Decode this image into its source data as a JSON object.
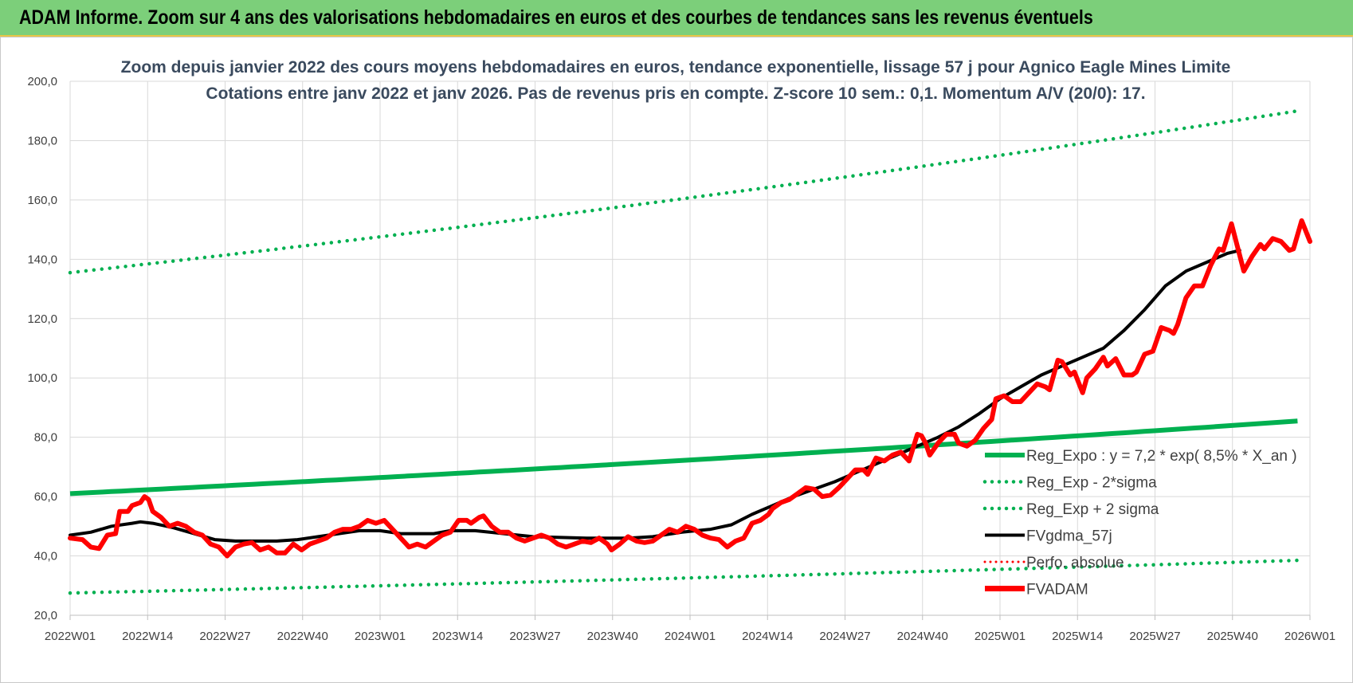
{
  "header": {
    "title": "ADAM Informe. Zoom sur 4 ans des valorisations hebdomadaires en euros et des courbes de tendances sans les revenus éventuels"
  },
  "chart_data": {
    "type": "line",
    "title_line1": "Zoom depuis janvier 2022 des cours moyens hebdomadaires en euros, tendance exponentielle, lissage 57 j pour Agnico Eagle Mines Limite",
    "title_line2": "Cotations entre janv 2022 et janv 2026. Pas de revenus pris en compte. Z-score 10 sem.: 0,1. Momentum A/V (20/0): 17.",
    "ylim": [
      20,
      200
    ],
    "yticks": [
      "20,0",
      "40,0",
      "60,0",
      "80,0",
      "100,0",
      "120,0",
      "140,0",
      "160,0",
      "180,0",
      "200,0"
    ],
    "xticks": [
      "2022W01",
      "2022W14",
      "2022W27",
      "2022W40",
      "2023W01",
      "2023W14",
      "2023W27",
      "2023W40",
      "2024W01",
      "2024W14",
      "2024W27",
      "2024W40",
      "2025W01",
      "2025W14",
      "2025W27",
      "2025W40",
      "2026W01"
    ],
    "grid": true,
    "legend_position": "right",
    "colors": {
      "reg": "#00b050",
      "fvgdma": "#000000",
      "perfo": "#ff0000",
      "fvadam": "#ff0000"
    },
    "series": [
      {
        "name": "Reg_Expo : y = 7,2 * exp( 8,5% *  X_an )",
        "style": "solid-thick",
        "values_start": 61,
        "values_end": 85.5
      },
      {
        "name": "Reg_Exp - 2*sigma",
        "style": "dotted",
        "values_start": 27.5,
        "values_end": 38.5
      },
      {
        "name": "Reg_Exp + 2 sigma",
        "style": "dotted",
        "values_start": 135.5,
        "values_end": 190
      },
      {
        "name": "FVgdma_57j",
        "style": "solid",
        "points": [
          [
            0,
            47
          ],
          [
            5,
            48
          ],
          [
            10,
            50
          ],
          [
            15,
            51
          ],
          [
            17,
            51.5
          ],
          [
            20,
            51
          ],
          [
            25,
            49.5
          ],
          [
            30,
            47.5
          ],
          [
            35,
            45.5
          ],
          [
            40,
            45
          ],
          [
            50,
            45
          ],
          [
            55,
            45.5
          ],
          [
            60,
            46.5
          ],
          [
            65,
            47.5
          ],
          [
            70,
            48.5
          ],
          [
            75,
            48.5
          ],
          [
            80,
            47.5
          ],
          [
            88,
            47.5
          ],
          [
            92,
            48.5
          ],
          [
            98,
            48.5
          ],
          [
            105,
            47.5
          ],
          [
            112,
            46.5
          ],
          [
            125,
            46
          ],
          [
            135,
            46
          ],
          [
            141,
            46.5
          ],
          [
            148,
            48
          ],
          [
            155,
            49
          ],
          [
            160,
            50.5
          ],
          [
            165,
            54
          ],
          [
            170,
            57
          ],
          [
            175,
            60
          ],
          [
            180,
            62.5
          ],
          [
            185,
            65
          ],
          [
            190,
            68
          ],
          [
            195,
            71
          ],
          [
            200,
            74
          ],
          [
            205,
            77
          ],
          [
            210,
            80
          ],
          [
            215,
            83.5
          ],
          [
            220,
            88
          ],
          [
            225,
            93
          ],
          [
            230,
            97
          ],
          [
            235,
            101
          ],
          [
            240,
            104
          ],
          [
            245,
            107
          ],
          [
            250,
            110
          ],
          [
            255,
            116
          ],
          [
            260,
            123
          ],
          [
            265,
            131
          ],
          [
            270,
            136
          ],
          [
            275,
            139
          ],
          [
            280,
            142
          ],
          [
            283,
            143
          ]
        ]
      },
      {
        "name": "Perfo. absolue",
        "style": "dotted",
        "points": []
      },
      {
        "name": "FVADAM",
        "style": "solid-thick",
        "points": [
          [
            0,
            46
          ],
          [
            3,
            45.5
          ],
          [
            5,
            43
          ],
          [
            7,
            42.5
          ],
          [
            9,
            47
          ],
          [
            11,
            47.5
          ],
          [
            12,
            55
          ],
          [
            14,
            55
          ],
          [
            15,
            57
          ],
          [
            17,
            58
          ],
          [
            18,
            60
          ],
          [
            19,
            59
          ],
          [
            20,
            55
          ],
          [
            22,
            53
          ],
          [
            24,
            50
          ],
          [
            26,
            51
          ],
          [
            28,
            50
          ],
          [
            30,
            48
          ],
          [
            32,
            47
          ],
          [
            34,
            44
          ],
          [
            36,
            43
          ],
          [
            38,
            40
          ],
          [
            40,
            43
          ],
          [
            42,
            44
          ],
          [
            44,
            44.5
          ],
          [
            46,
            42
          ],
          [
            48,
            43
          ],
          [
            50,
            41
          ],
          [
            52,
            41
          ],
          [
            54,
            44
          ],
          [
            56,
            42
          ],
          [
            58,
            44
          ],
          [
            60,
            45
          ],
          [
            62,
            46
          ],
          [
            64,
            48
          ],
          [
            66,
            49
          ],
          [
            68,
            49
          ],
          [
            70,
            50
          ],
          [
            72,
            52
          ],
          [
            74,
            51
          ],
          [
            76,
            52
          ],
          [
            78,
            49
          ],
          [
            80,
            46
          ],
          [
            82,
            43
          ],
          [
            84,
            44
          ],
          [
            86,
            43
          ],
          [
            88,
            45
          ],
          [
            90,
            47
          ],
          [
            92,
            48
          ],
          [
            94,
            52
          ],
          [
            96,
            52
          ],
          [
            97,
            51
          ],
          [
            99,
            53
          ],
          [
            100,
            53.5
          ],
          [
            102,
            50
          ],
          [
            104,
            48
          ],
          [
            106,
            48
          ],
          [
            108,
            46
          ],
          [
            110,
            45
          ],
          [
            112,
            46
          ],
          [
            114,
            47
          ],
          [
            116,
            46
          ],
          [
            118,
            44
          ],
          [
            120,
            43
          ],
          [
            122,
            44
          ],
          [
            124,
            45
          ],
          [
            126,
            44.5
          ],
          [
            128,
            46
          ],
          [
            130,
            44
          ],
          [
            131,
            42
          ],
          [
            133,
            44
          ],
          [
            135,
            46.5
          ],
          [
            137,
            45
          ],
          [
            139,
            44.5
          ],
          [
            141,
            45
          ],
          [
            143,
            47
          ],
          [
            145,
            49
          ],
          [
            147,
            48
          ],
          [
            149,
            50
          ],
          [
            151,
            49
          ],
          [
            153,
            47
          ],
          [
            155,
            46
          ],
          [
            157,
            45.5
          ],
          [
            159,
            43
          ],
          [
            161,
            45
          ],
          [
            163,
            46
          ],
          [
            165,
            51
          ],
          [
            167,
            52
          ],
          [
            169,
            54
          ],
          [
            170,
            56
          ],
          [
            172,
            58
          ],
          [
            174,
            59
          ],
          [
            176,
            61
          ],
          [
            178,
            63
          ],
          [
            180,
            62.5
          ],
          [
            182,
            60
          ],
          [
            184,
            60.5
          ],
          [
            186,
            63
          ],
          [
            188,
            66
          ],
          [
            190,
            69
          ],
          [
            192,
            69
          ],
          [
            193,
            67.5
          ],
          [
            195,
            73
          ],
          [
            197,
            72
          ],
          [
            199,
            74
          ],
          [
            201,
            75
          ],
          [
            203,
            72
          ],
          [
            205,
            81
          ],
          [
            206,
            80.5
          ],
          [
            207,
            78
          ],
          [
            208,
            74
          ],
          [
            210,
            78
          ],
          [
            212,
            81
          ],
          [
            214,
            81
          ],
          [
            215,
            78
          ],
          [
            217,
            77
          ],
          [
            219,
            79
          ],
          [
            221,
            83
          ],
          [
            223,
            86
          ],
          [
            224,
            93
          ],
          [
            226,
            94
          ],
          [
            228,
            92
          ],
          [
            230,
            92
          ],
          [
            232,
            95
          ],
          [
            234,
            98
          ],
          [
            236,
            97
          ],
          [
            237,
            96
          ],
          [
            239,
            106
          ],
          [
            240,
            105.5
          ],
          [
            242,
            101
          ],
          [
            243,
            102
          ],
          [
            245,
            95
          ],
          [
            246,
            100
          ],
          [
            248,
            103
          ],
          [
            250,
            107
          ],
          [
            251,
            104
          ],
          [
            253,
            106.5
          ],
          [
            255,
            101
          ],
          [
            257,
            101
          ],
          [
            258,
            102
          ],
          [
            260,
            108
          ],
          [
            262,
            109
          ],
          [
            264,
            117
          ],
          [
            266,
            116
          ],
          [
            267,
            115
          ],
          [
            268,
            118
          ],
          [
            270,
            127
          ],
          [
            272,
            131
          ],
          [
            274,
            131
          ],
          [
            276,
            138
          ],
          [
            278,
            143.5
          ],
          [
            279,
            143
          ],
          [
            281,
            152
          ],
          [
            284,
            136
          ],
          [
            286,
            141
          ],
          [
            288,
            145
          ],
          [
            289,
            143.5
          ],
          [
            291,
            147
          ],
          [
            293,
            146
          ],
          [
            295,
            143
          ],
          [
            296,
            143.5
          ],
          [
            298,
            153
          ],
          [
            300,
            146
          ]
        ]
      }
    ]
  }
}
